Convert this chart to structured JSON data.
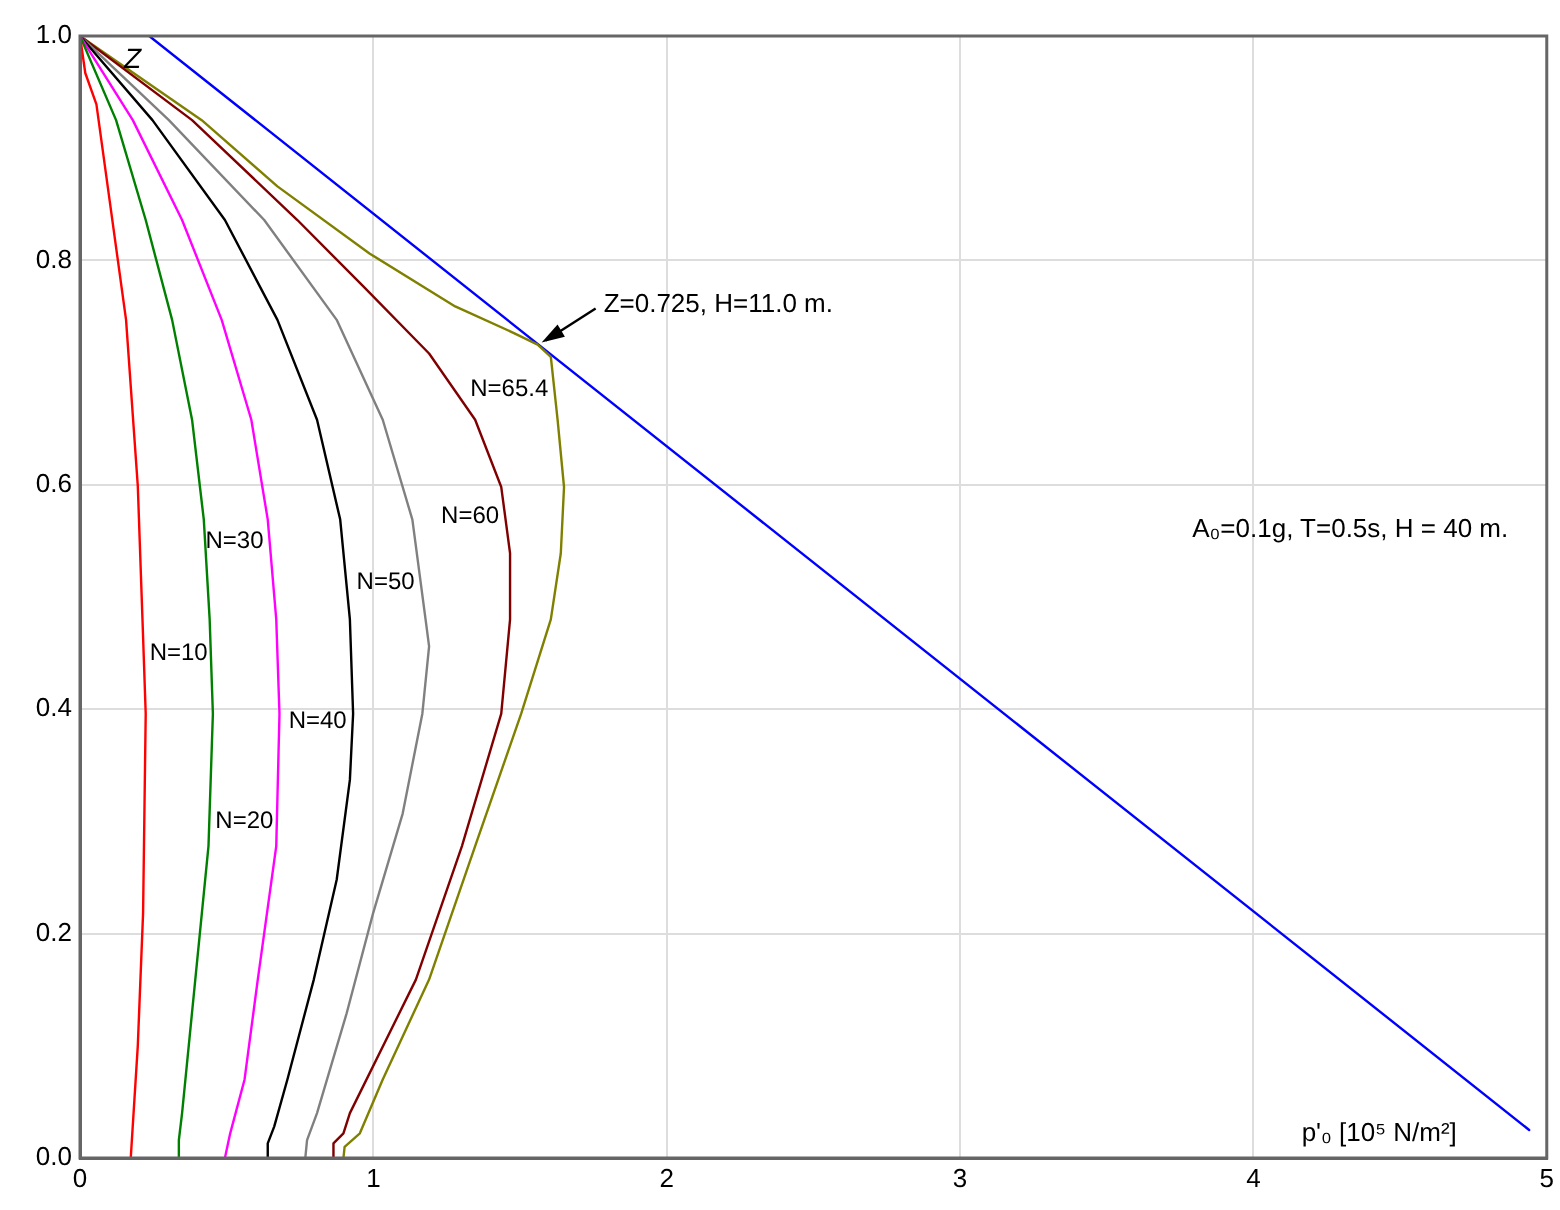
{
  "chart_data": {
    "type": "line",
    "xlabel": "p'₀ [10⁵ N/m²]",
    "ylabel": "Z",
    "xlim": [
      0,
      5
    ],
    "xticks": [
      0,
      1,
      2,
      3,
      4,
      5
    ],
    "ylim": [
      0,
      1
    ],
    "yticks": [
      {
        "value": 0,
        "label": "0.0"
      },
      {
        "value": 0.2,
        "label": "0.2"
      },
      {
        "value": 0.4,
        "label": "0.4"
      },
      {
        "value": 0.6,
        "label": "0.6"
      },
      {
        "value": 0.8,
        "label": "0.8"
      },
      {
        "value": 1,
        "label": "1.0"
      }
    ],
    "grid": true,
    "marker": "none",
    "line_style": "solid",
    "series": [
      {
        "name": "N=10",
        "color": "#ff0000",
        "x": [
          0,
          0.018,
          0.056,
          0.157,
          0.197,
          0.213,
          0.224,
          0.215,
          0.197,
          0.173
        ],
        "values": [
          1,
          0.967,
          0.939,
          0.747,
          0.599,
          0.48,
          0.396,
          0.218,
          0.1,
          0
        ]
      },
      {
        "name": "N=20",
        "color": "#008000",
        "x": [
          0,
          0.123,
          0.224,
          0.314,
          0.382,
          0.422,
          0.442,
          0.453,
          0.438,
          0.393,
          0.348,
          0.337,
          0.337
        ],
        "values": [
          1,
          0.925,
          0.836,
          0.747,
          0.658,
          0.569,
          0.48,
          0.396,
          0.278,
          0.159,
          0.04,
          0.016,
          0
        ]
      },
      {
        "name": "N=30",
        "color": "#ff00ff",
        "x": [
          0,
          0.18,
          0.348,
          0.483,
          0.584,
          0.64,
          0.669,
          0.68,
          0.669,
          0.606,
          0.561,
          0.512,
          0.494
        ],
        "values": [
          1,
          0.925,
          0.836,
          0.747,
          0.658,
          0.569,
          0.48,
          0.396,
          0.278,
          0.159,
          0.07,
          0.022,
          0
        ]
      },
      {
        "name": "N=40",
        "color": "#000000",
        "x": [
          0,
          0.247,
          0.494,
          0.673,
          0.808,
          0.887,
          0.92,
          0.931,
          0.92,
          0.875,
          0.797,
          0.707,
          0.662,
          0.64,
          0.64
        ],
        "values": [
          1,
          0.925,
          0.836,
          0.747,
          0.658,
          0.569,
          0.48,
          0.396,
          0.337,
          0.248,
          0.159,
          0.07,
          0.028,
          0.013,
          0
        ]
      },
      {
        "name": "N=50",
        "color": "#808080",
        "x": [
          0,
          0.303,
          0.628,
          0.875,
          1.032,
          1.133,
          1.178,
          1.19,
          1.167,
          1.1,
          0.999,
          0.909,
          0.808,
          0.774,
          0.768
        ],
        "values": [
          1,
          0.925,
          0.836,
          0.747,
          0.658,
          0.569,
          0.48,
          0.456,
          0.396,
          0.307,
          0.218,
          0.129,
          0.04,
          0.016,
          0
        ]
      },
      {
        "name": "N=60",
        "color": "#800000",
        "x": [
          0,
          0.382,
          0.741,
          0.965,
          1.19,
          1.347,
          1.436,
          1.466,
          1.466,
          1.436,
          1.302,
          1.145,
          0.92,
          0.898,
          0.864,
          0.864
        ],
        "values": [
          1,
          0.925,
          0.836,
          0.777,
          0.717,
          0.658,
          0.598,
          0.539,
          0.48,
          0.396,
          0.278,
          0.159,
          0.04,
          0.022,
          0.013,
          0
        ]
      },
      {
        "name": "N=65.4",
        "color": "#808000",
        "x": [
          0,
          0.415,
          0.673,
          0.988,
          1.279,
          1.481,
          1.56,
          1.605,
          1.628,
          1.65,
          1.639,
          1.605,
          1.504,
          1.347,
          1.19,
          1.032,
          0.954,
          0.902,
          0.898
        ],
        "values": [
          1,
          0.925,
          0.866,
          0.806,
          0.759,
          0.735,
          0.725,
          0.714,
          0.658,
          0.598,
          0.539,
          0.48,
          0.396,
          0.278,
          0.159,
          0.07,
          0.022,
          0.01,
          0
        ]
      },
      {
        "color": "#0000ff",
        "x": [
          0.236,
          4.94
        ],
        "values": [
          1,
          0.025
        ]
      }
    ],
    "annotations": [
      {
        "text": "Z=0.725, H=11.0 m.",
        "x": 1.56,
        "y": 0.725
      },
      "A₀=0.1g, T=0.5s, H = 40 m."
    ]
  }
}
